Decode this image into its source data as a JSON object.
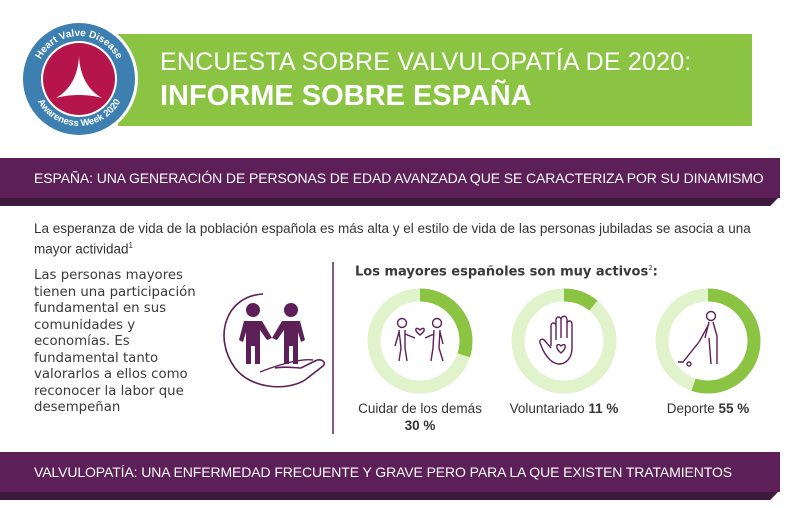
{
  "header": {
    "badge": {
      "top_text": "Heart Valve Disease",
      "bottom_text": "Awareness Week 2020"
    },
    "title_line1": "ENCUESTA SOBRE VALVULOPATÍA DE 2020:",
    "title_line2": "INFORME SOBRE ESPAÑA"
  },
  "section1": {
    "heading": "ESPAÑA: UNA GENERACIÓN DE PERSONAS DE EDAD AVANZADA QUE SE CARACTERIZA POR SU DINAMISMO",
    "intro": "La esperanza de vida de la población española es más alta y el estilo de vida de las personas jubiladas se asocia a una mayor actividad",
    "intro_footnote": "1",
    "left_paragraph": "Las personas mayores tienen una participación fundamental en sus comunidades y economías. Es fundamental tanto valorarlos a ellos como reconocer la labor que desempeñan",
    "activities_title": "Los mayores españoles son muy activos",
    "activities_footnote": "2",
    "activities_suffix": ":",
    "activities": [
      {
        "label": "Cuidar de los demás",
        "value_text": "30 %",
        "percent": 30,
        "icon": "people-sharing-heart-icon"
      },
      {
        "label": "Voluntariado",
        "value_text": "11 %",
        "percent": 11,
        "icon": "hand-heart-icon"
      },
      {
        "label": "Deporte",
        "value_text": "55 %",
        "percent": 55,
        "icon": "golfer-icon"
      }
    ]
  },
  "section2": {
    "heading": "VALVULOPATÍA: UNA ENFERMEDAD FRECUENTE Y GRAVE PERO PARA LA QUE EXISTEN TRATAMIENTOS"
  },
  "colors": {
    "green": "#8bc342",
    "green_light": "#e1f3cb",
    "purple": "#5c1f58",
    "badge_blue": "#3d7fb0",
    "badge_red": "#b5154a"
  }
}
